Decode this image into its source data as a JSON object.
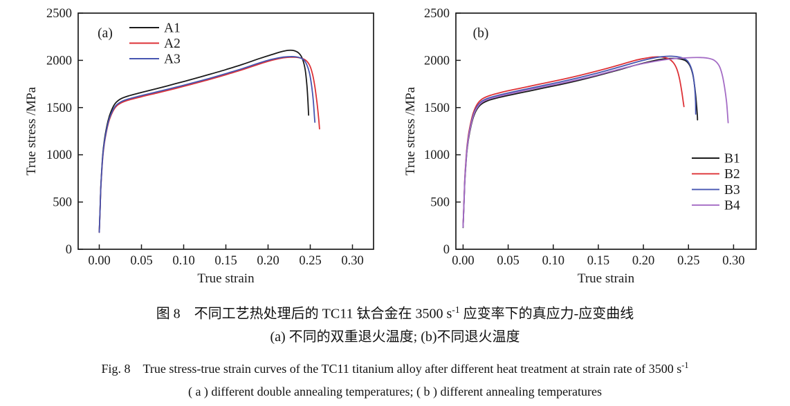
{
  "figure": {
    "captions": {
      "cn1_pre": "图 8　不同工艺热处理后的 TC11 钛合金在 3500 s",
      "cn1_sup": "-1",
      "cn1_post": " 应变率下的真应力-应变曲线",
      "cn2": "(a) 不同的双重退火温度; (b)不同退火温度",
      "en1_pre": "Fig. 8　True stress-true strain curves of the TC11 titanium alloy after different heat treatment at strain rate of 3500 s",
      "en1_sup": "-1",
      "en1_post": "",
      "en2": "( a ) different double annealing temperatures; ( b ) different annealing temperatures"
    }
  },
  "colors": {
    "axis": "#1a1a1a",
    "black_series": "#1a1a1a",
    "red_series": "#dd3136",
    "blue_series": "#4655b0",
    "purple_series": "#a46cc5"
  },
  "chart_data": [
    {
      "type": "line",
      "panel_label": "(a)",
      "xlabel": "True strain",
      "ylabel": "True stress /MPa",
      "xlim": [
        -0.025,
        0.325
      ],
      "ylim": [
        0,
        2500
      ],
      "xticks": [
        0.0,
        0.05,
        0.1,
        0.15,
        0.2,
        0.25,
        0.3
      ],
      "xtick_labels": [
        "0.00",
        "0.05",
        "0.10",
        "0.15",
        "0.20",
        "0.25",
        "0.30"
      ],
      "yticks": [
        0,
        500,
        1000,
        1500,
        2000,
        2500
      ],
      "ytick_labels": [
        "0",
        "500",
        "1000",
        "1500",
        "2000",
        "2500"
      ],
      "grid": false,
      "legend_position": "top-left",
      "series": [
        {
          "name": "A1",
          "color": "#1a1a1a",
          "points": [
            [
              0.0,
              180
            ],
            [
              0.001,
              430
            ],
            [
              0.002,
              690
            ],
            [
              0.004,
              990
            ],
            [
              0.006,
              1150
            ],
            [
              0.009,
              1305
            ],
            [
              0.012,
              1410
            ],
            [
              0.016,
              1500
            ],
            [
              0.02,
              1555
            ],
            [
              0.026,
              1595
            ],
            [
              0.034,
              1622
            ],
            [
              0.05,
              1660
            ],
            [
              0.07,
              1705
            ],
            [
              0.09,
              1752
            ],
            [
              0.11,
              1800
            ],
            [
              0.13,
              1850
            ],
            [
              0.15,
              1902
            ],
            [
              0.17,
              1958
            ],
            [
              0.19,
              2020
            ],
            [
              0.205,
              2062
            ],
            [
              0.215,
              2090
            ],
            [
              0.224,
              2106
            ],
            [
              0.231,
              2102
            ],
            [
              0.237,
              2072
            ],
            [
              0.241,
              2010
            ],
            [
              0.244,
              1900
            ],
            [
              0.246,
              1740
            ],
            [
              0.2473,
              1560
            ],
            [
              0.248,
              1420
            ]
          ]
        },
        {
          "name": "A2",
          "color": "#dd3136",
          "points": [
            [
              0.0,
              180
            ],
            [
              0.001,
              420
            ],
            [
              0.002,
              672
            ],
            [
              0.004,
              960
            ],
            [
              0.006,
              1118
            ],
            [
              0.009,
              1268
            ],
            [
              0.012,
              1372
            ],
            [
              0.016,
              1458
            ],
            [
              0.02,
              1512
            ],
            [
              0.026,
              1550
            ],
            [
              0.034,
              1578
            ],
            [
              0.05,
              1615
            ],
            [
              0.07,
              1658
            ],
            [
              0.09,
              1702
            ],
            [
              0.11,
              1748
            ],
            [
              0.13,
              1796
            ],
            [
              0.15,
              1848
            ],
            [
              0.17,
              1902
            ],
            [
              0.19,
              1962
            ],
            [
              0.205,
              2002
            ],
            [
              0.218,
              2026
            ],
            [
              0.228,
              2034
            ],
            [
              0.237,
              2028
            ],
            [
              0.244,
              2005
            ],
            [
              0.249,
              1952
            ],
            [
              0.2525,
              1862
            ],
            [
              0.2555,
              1720
            ],
            [
              0.258,
              1550
            ],
            [
              0.26,
              1380
            ],
            [
              0.261,
              1275
            ]
          ]
        },
        {
          "name": "A3",
          "color": "#4655b0",
          "points": [
            [
              0.0,
              180
            ],
            [
              0.001,
              425
            ],
            [
              0.002,
              680
            ],
            [
              0.004,
              972
            ],
            [
              0.006,
              1130
            ],
            [
              0.009,
              1280
            ],
            [
              0.012,
              1385
            ],
            [
              0.016,
              1470
            ],
            [
              0.02,
              1524
            ],
            [
              0.026,
              1562
            ],
            [
              0.034,
              1590
            ],
            [
              0.05,
              1627
            ],
            [
              0.07,
              1670
            ],
            [
              0.09,
              1714
            ],
            [
              0.11,
              1760
            ],
            [
              0.13,
              1808
            ],
            [
              0.15,
              1860
            ],
            [
              0.17,
              1914
            ],
            [
              0.19,
              1974
            ],
            [
              0.205,
              2012
            ],
            [
              0.218,
              2034
            ],
            [
              0.228,
              2040
            ],
            [
              0.236,
              2032
            ],
            [
              0.242,
              2008
            ],
            [
              0.246,
              1952
            ],
            [
              0.249,
              1868
            ],
            [
              0.2515,
              1740
            ],
            [
              0.2535,
              1580
            ],
            [
              0.255,
              1400
            ],
            [
              0.2555,
              1345
            ]
          ]
        }
      ]
    },
    {
      "type": "line",
      "panel_label": "(b)",
      "xlabel": "True strain",
      "ylabel": "True stress /MPa",
      "xlim": [
        -0.008,
        0.325
      ],
      "ylim": [
        0,
        2500
      ],
      "xticks": [
        0.0,
        0.05,
        0.1,
        0.15,
        0.2,
        0.25,
        0.3
      ],
      "xtick_labels": [
        "0.00",
        "0.05",
        "0.10",
        "0.15",
        "0.20",
        "0.25",
        "0.30"
      ],
      "yticks": [
        0,
        500,
        1000,
        1500,
        2000,
        2500
      ],
      "ytick_labels": [
        "0",
        "500",
        "1000",
        "1500",
        "2000",
        "2500"
      ],
      "grid": false,
      "legend_position": "bottom-right",
      "series": [
        {
          "name": "B1",
          "color": "#1a1a1a",
          "points": [
            [
              0.0,
              230
            ],
            [
              0.001,
              480
            ],
            [
              0.002,
              730
            ],
            [
              0.004,
              1010
            ],
            [
              0.006,
              1165
            ],
            [
              0.009,
              1315
            ],
            [
              0.012,
              1415
            ],
            [
              0.016,
              1492
            ],
            [
              0.021,
              1542
            ],
            [
              0.028,
              1575
            ],
            [
              0.037,
              1600
            ],
            [
              0.05,
              1628
            ],
            [
              0.07,
              1668
            ],
            [
              0.09,
              1708
            ],
            [
              0.11,
              1748
            ],
            [
              0.13,
              1792
            ],
            [
              0.15,
              1840
            ],
            [
              0.17,
              1892
            ],
            [
              0.19,
              1946
            ],
            [
              0.205,
              1982
            ],
            [
              0.218,
              2008
            ],
            [
              0.23,
              2020
            ],
            [
              0.24,
              2016
            ],
            [
              0.247,
              1995
            ],
            [
              0.2515,
              1944
            ],
            [
              0.2545,
              1862
            ],
            [
              0.2565,
              1750
            ],
            [
              0.2585,
              1580
            ],
            [
              0.2598,
              1420
            ],
            [
              0.26,
              1370
            ]
          ]
        },
        {
          "name": "B2",
          "color": "#dd3136",
          "points": [
            [
              0.0,
              240
            ],
            [
              0.001,
              505
            ],
            [
              0.002,
              765
            ],
            [
              0.004,
              1050
            ],
            [
              0.006,
              1212
            ],
            [
              0.009,
              1362
            ],
            [
              0.012,
              1462
            ],
            [
              0.016,
              1540
            ],
            [
              0.021,
              1590
            ],
            [
              0.028,
              1622
            ],
            [
              0.037,
              1648
            ],
            [
              0.05,
              1678
            ],
            [
              0.07,
              1718
            ],
            [
              0.09,
              1758
            ],
            [
              0.11,
              1798
            ],
            [
              0.13,
              1842
            ],
            [
              0.15,
              1890
            ],
            [
              0.17,
              1942
            ],
            [
              0.19,
              1998
            ],
            [
              0.202,
              2022
            ],
            [
              0.212,
              2036
            ],
            [
              0.221,
              2034
            ],
            [
              0.228,
              2016
            ],
            [
              0.233,
              1978
            ],
            [
              0.237,
              1910
            ],
            [
              0.24,
              1808
            ],
            [
              0.2425,
              1672
            ],
            [
              0.2445,
              1540
            ],
            [
              0.245,
              1510
            ]
          ]
        },
        {
          "name": "B3",
          "color": "#4655b0",
          "points": [
            [
              0.0,
              235
            ],
            [
              0.001,
              495
            ],
            [
              0.002,
              750
            ],
            [
              0.004,
              1032
            ],
            [
              0.006,
              1190
            ],
            [
              0.009,
              1340
            ],
            [
              0.012,
              1442
            ],
            [
              0.016,
              1518
            ],
            [
              0.021,
              1568
            ],
            [
              0.028,
              1600
            ],
            [
              0.037,
              1625
            ],
            [
              0.05,
              1655
            ],
            [
              0.07,
              1696
            ],
            [
              0.09,
              1736
            ],
            [
              0.11,
              1776
            ],
            [
              0.13,
              1820
            ],
            [
              0.15,
              1868
            ],
            [
              0.17,
              1920
            ],
            [
              0.19,
              1975
            ],
            [
              0.205,
              2012
            ],
            [
              0.22,
              2038
            ],
            [
              0.231,
              2044
            ],
            [
              0.241,
              2032
            ],
            [
              0.248,
              2002
            ],
            [
              0.252,
              1944
            ],
            [
              0.255,
              1850
            ],
            [
              0.2568,
              1720
            ],
            [
              0.2578,
              1570
            ],
            [
              0.258,
              1430
            ]
          ]
        },
        {
          "name": "B4",
          "color": "#a46cc5",
          "points": [
            [
              0.0,
              235
            ],
            [
              0.001,
              490
            ],
            [
              0.002,
              742
            ],
            [
              0.004,
              1022
            ],
            [
              0.006,
              1178
            ],
            [
              0.009,
              1328
            ],
            [
              0.012,
              1430
            ],
            [
              0.016,
              1505
            ],
            [
              0.021,
              1556
            ],
            [
              0.028,
              1588
            ],
            [
              0.037,
              1612
            ],
            [
              0.05,
              1642
            ],
            [
              0.07,
              1684
            ],
            [
              0.09,
              1722
            ],
            [
              0.11,
              1760
            ],
            [
              0.13,
              1802
            ],
            [
              0.15,
              1848
            ],
            [
              0.17,
              1898
            ],
            [
              0.19,
              1946
            ],
            [
              0.21,
              1985
            ],
            [
              0.23,
              2014
            ],
            [
              0.25,
              2028
            ],
            [
              0.263,
              2030
            ],
            [
              0.272,
              2022
            ],
            [
              0.279,
              1998
            ],
            [
              0.284,
              1942
            ],
            [
              0.2872,
              1855
            ],
            [
              0.2898,
              1730
            ],
            [
              0.2922,
              1560
            ],
            [
              0.294,
              1340
            ]
          ]
        }
      ]
    }
  ]
}
